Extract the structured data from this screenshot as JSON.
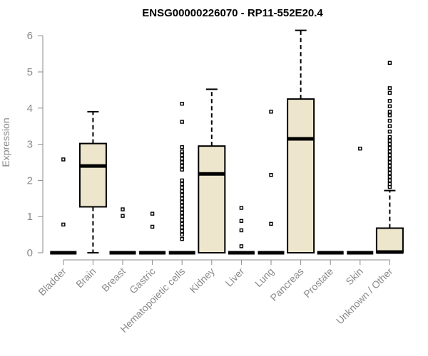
{
  "chart_data": {
    "type": "box",
    "title": "ENSG00000226070 - RP11-552E20.4",
    "xlabel": "",
    "ylabel": "Expression",
    "ylim": [
      0,
      6.2
    ],
    "yticks": [
      0,
      1,
      2,
      3,
      4,
      5,
      6
    ],
    "grid": false,
    "legend": "none",
    "colors": {
      "box_fill": "#ede6cd",
      "line": "#000000",
      "axis_text": "#8a8a8a"
    },
    "categories": [
      "Bladder",
      "Brain",
      "Breast",
      "Gastric",
      "Hematopoietic cells",
      "Kidney",
      "Liver",
      "Lung",
      "Pancreas",
      "Prostate",
      "Skin",
      "Unknown / Other"
    ],
    "boxes": [
      {
        "q1": 0,
        "median": 0,
        "q3": 0,
        "whisker_low": 0,
        "whisker_high": 0,
        "outliers": [
          0.78,
          2.58
        ]
      },
      {
        "q1": 1.27,
        "median": 2.4,
        "q3": 3.02,
        "whisker_low": 0,
        "whisker_high": 3.9,
        "outliers": []
      },
      {
        "q1": 0,
        "median": 0,
        "q3": 0,
        "whisker_low": 0,
        "whisker_high": 0,
        "outliers": [
          1.02,
          1.2
        ]
      },
      {
        "q1": 0,
        "median": 0,
        "q3": 0,
        "whisker_low": 0,
        "whisker_high": 0,
        "outliers": [
          0.72,
          1.08
        ]
      },
      {
        "q1": 0,
        "median": 0,
        "q3": 0,
        "whisker_low": 0,
        "whisker_high": 0,
        "outliers": [
          0.38,
          0.5,
          0.6,
          0.7,
          0.8,
          0.9,
          1.0,
          1.1,
          1.2,
          1.3,
          1.4,
          1.5,
          1.6,
          1.7,
          1.8,
          1.9,
          2.0,
          2.3,
          2.4,
          2.5,
          2.6,
          2.7,
          2.8,
          2.92,
          3.62,
          4.12
        ]
      },
      {
        "q1": 0,
        "median": 2.18,
        "q3": 2.95,
        "whisker_low": 0,
        "whisker_high": 4.52,
        "outliers": []
      },
      {
        "q1": 0,
        "median": 0,
        "q3": 0,
        "whisker_low": 0,
        "whisker_high": 0,
        "outliers": [
          0.18,
          0.62,
          0.88,
          1.24
        ]
      },
      {
        "q1": 0,
        "median": 0,
        "q3": 0,
        "whisker_low": 0,
        "whisker_high": 0,
        "outliers": [
          0.8,
          2.15,
          3.9
        ]
      },
      {
        "q1": 0,
        "median": 3.15,
        "q3": 4.25,
        "whisker_low": 0,
        "whisker_high": 6.15,
        "outliers": []
      },
      {
        "q1": 0,
        "median": 0,
        "q3": 0,
        "whisker_low": 0,
        "whisker_high": 0,
        "outliers": []
      },
      {
        "q1": 0,
        "median": 0,
        "q3": 0,
        "whisker_low": 0,
        "whisker_high": 0,
        "outliers": [
          2.88
        ]
      },
      {
        "q1": 0,
        "median": 0.02,
        "q3": 0.68,
        "whisker_low": 0,
        "whisker_high": 1.72,
        "outliers": [
          1.82,
          1.9,
          2.0,
          2.1,
          2.2,
          2.3,
          2.4,
          2.5,
          2.6,
          2.7,
          2.8,
          2.9,
          3.0,
          3.1,
          3.2,
          3.35,
          3.5,
          3.65,
          3.8,
          3.9,
          4.05,
          4.2,
          4.42,
          4.55,
          5.25
        ]
      }
    ]
  }
}
